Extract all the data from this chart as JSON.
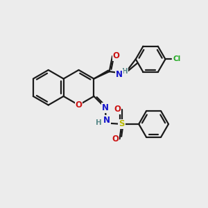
{
  "bg_color": "#ececec",
  "bond_color": "#1a1a1a",
  "bond_width": 1.6,
  "dbo": 0.08,
  "atom_colors": {
    "N": "#1414cc",
    "O": "#cc1414",
    "S": "#b8b800",
    "Cl": "#22aa22",
    "H": "#5a8a8a"
  },
  "font_size": 8.5,
  "fig_size": [
    3.0,
    3.0
  ],
  "dpi": 100
}
